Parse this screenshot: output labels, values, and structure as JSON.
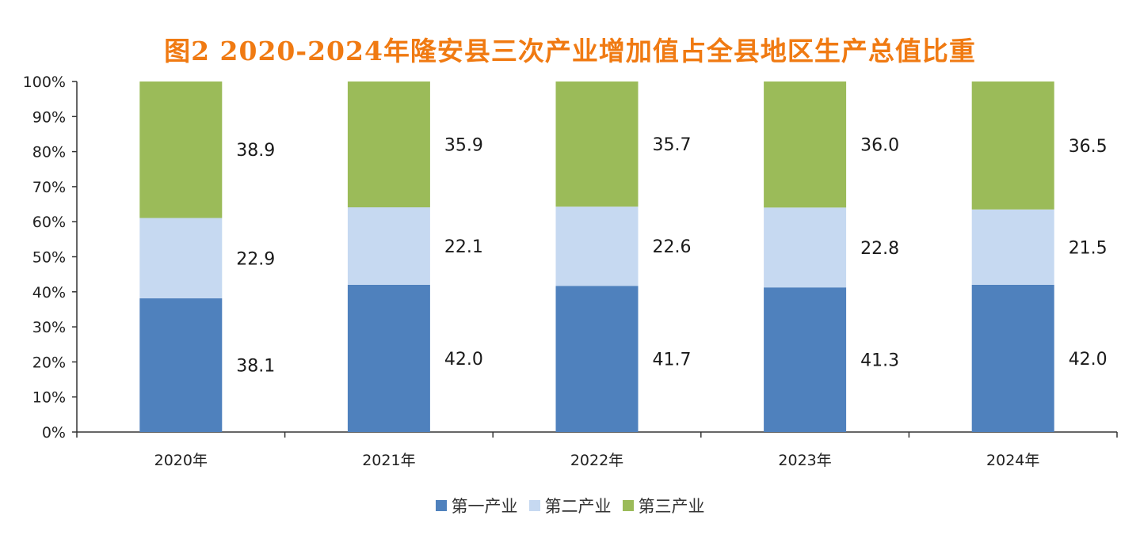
{
  "colors": {
    "title": "#f07a12",
    "series": [
      "#4f81bd",
      "#c6d9f1",
      "#9bbb59"
    ],
    "axis": "#333333"
  },
  "chart_data": {
    "type": "bar",
    "stacked": true,
    "title": "图2   2020-2024年隆安县三次产业增加值占全县地区生产总值比重",
    "xlabel": "",
    "ylabel": "",
    "categories": [
      "2020年",
      "2021年",
      "2022年",
      "2023年",
      "2024年"
    ],
    "series": [
      {
        "name": "第一产业",
        "values": [
          38.1,
          42.0,
          41.7,
          41.3,
          42.0
        ],
        "labels": [
          "38.1",
          "42.0",
          "41.7",
          "41.3",
          "42.0"
        ]
      },
      {
        "name": "第二产业",
        "values": [
          22.9,
          22.1,
          22.6,
          22.8,
          21.5
        ],
        "labels": [
          "22.9",
          "22.1",
          "22.6",
          "22.8",
          "21.5"
        ]
      },
      {
        "name": "第三产业",
        "values": [
          38.9,
          35.9,
          35.7,
          36.0,
          36.5
        ],
        "labels": [
          "38.9",
          "35.9",
          "35.7",
          "36.0",
          "36.5"
        ]
      }
    ],
    "ylim": [
      0,
      100
    ],
    "yticks": [
      "0%",
      "10%",
      "20%",
      "30%",
      "40%",
      "50%",
      "60%",
      "70%",
      "80%",
      "90%",
      "100%"
    ],
    "grid": false,
    "legend": "bottom"
  }
}
